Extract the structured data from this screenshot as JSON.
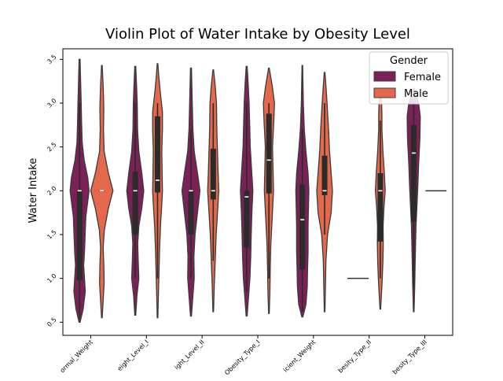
{
  "chart_data": {
    "type": "violin",
    "title": "Violin Plot of Water Intake by Obesity Level",
    "xlabel": "",
    "ylabel": "Water Intake",
    "ylim": [
      0.35,
      3.62
    ],
    "yticks": [
      "0.5",
      "1.0",
      "1.5",
      "2.0",
      "2.5",
      "3.0",
      "3.5"
    ],
    "categories": [
      "Normal_Weight",
      "Overweight_Level_I",
      "Overweight_Level_II",
      "Obesity_Type_I",
      "Insufficient_Weight",
      "Obesity_Type_II",
      "Obesity_Type_III"
    ],
    "category_tick_labels": [
      "ormal_Weight",
      "eight_Level_I",
      "ight_Level_II",
      "Obesity_Type_I",
      "icient_Weight",
      "besity_Type_II",
      "besity_Type_III"
    ],
    "legend": {
      "title": "Gender",
      "placement": "top-right"
    },
    "series": [
      {
        "name": "Female",
        "color": "#7b2157",
        "violins": [
          {
            "ymin": 0.5,
            "ymax": 3.5,
            "q1": 0.98,
            "median": 2.0,
            "q3": 2.0,
            "wlo": 0.55,
            "whi": 3.0,
            "profile": [
              [
                0.5,
                0.003
              ],
              [
                0.65,
                0.022
              ],
              [
                0.85,
                0.035
              ],
              [
                1.0,
                0.03
              ],
              [
                1.15,
                0.025
              ],
              [
                1.3,
                0.03
              ],
              [
                1.5,
                0.034
              ],
              [
                1.7,
                0.038
              ],
              [
                1.85,
                0.048
              ],
              [
                2.0,
                0.058
              ],
              [
                2.15,
                0.05
              ],
              [
                2.35,
                0.028
              ],
              [
                2.55,
                0.016
              ],
              [
                2.8,
                0.012
              ],
              [
                3.0,
                0.01
              ],
              [
                3.2,
                0.007
              ],
              [
                3.5,
                0.003
              ]
            ]
          },
          {
            "ymin": 0.58,
            "ymax": 3.42,
            "q1": 1.5,
            "median": 2.0,
            "q3": 2.22,
            "wlo": 1.0,
            "whi": 3.0,
            "profile": [
              [
                0.58,
                0.003
              ],
              [
                0.8,
                0.01
              ],
              [
                1.0,
                0.022
              ],
              [
                1.2,
                0.018
              ],
              [
                1.4,
                0.015
              ],
              [
                1.6,
                0.022
              ],
              [
                1.8,
                0.04
              ],
              [
                2.0,
                0.052
              ],
              [
                2.2,
                0.04
              ],
              [
                2.45,
                0.022
              ],
              [
                2.7,
                0.014
              ],
              [
                3.0,
                0.012
              ],
              [
                3.2,
                0.008
              ],
              [
                3.42,
                0.003
              ]
            ]
          },
          {
            "ymin": 0.57,
            "ymax": 3.4,
            "q1": 1.5,
            "median": 2.0,
            "q3": 2.0,
            "wlo": 1.0,
            "whi": 2.7,
            "profile": [
              [
                0.57,
                0.003
              ],
              [
                0.8,
                0.012
              ],
              [
                1.0,
                0.02
              ],
              [
                1.25,
                0.018
              ],
              [
                1.5,
                0.025
              ],
              [
                1.75,
                0.04
              ],
              [
                2.0,
                0.055
              ],
              [
                2.2,
                0.04
              ],
              [
                2.45,
                0.02
              ],
              [
                2.7,
                0.012
              ],
              [
                3.0,
                0.008
              ],
              [
                3.4,
                0.003
              ]
            ]
          },
          {
            "ymin": 0.57,
            "ymax": 3.42,
            "q1": 1.35,
            "median": 1.93,
            "q3": 2.0,
            "wlo": 0.85,
            "whi": 3.0,
            "profile": [
              [
                0.57,
                0.003
              ],
              [
                0.8,
                0.012
              ],
              [
                1.0,
                0.02
              ],
              [
                1.25,
                0.025
              ],
              [
                1.5,
                0.028
              ],
              [
                1.75,
                0.032
              ],
              [
                2.0,
                0.038
              ],
              [
                2.25,
                0.03
              ],
              [
                2.5,
                0.022
              ],
              [
                2.8,
                0.018
              ],
              [
                3.0,
                0.015
              ],
              [
                3.2,
                0.01
              ],
              [
                3.42,
                0.003
              ]
            ]
          },
          {
            "ymin": 0.56,
            "ymax": 3.43,
            "q1": 1.1,
            "median": 1.67,
            "q3": 2.07,
            "wlo": 0.62,
            "whi": 2.7,
            "profile": [
              [
                0.56,
                0.003
              ],
              [
                0.7,
                0.022
              ],
              [
                0.9,
                0.03
              ],
              [
                1.1,
                0.032
              ],
              [
                1.3,
                0.035
              ],
              [
                1.6,
                0.035
              ],
              [
                1.85,
                0.038
              ],
              [
                2.0,
                0.04
              ],
              [
                2.2,
                0.035
              ],
              [
                2.45,
                0.022
              ],
              [
                2.7,
                0.012
              ],
              [
                3.0,
                0.006
              ],
              [
                3.43,
                0.002
              ]
            ]
          },
          {
            "ymin": 1.0,
            "ymax": 1.0,
            "line": true
          },
          {
            "ymin": 0.62,
            "ymax": 3.17,
            "q1": 1.65,
            "median": 2.43,
            "q3": 2.75,
            "wlo": 0.9,
            "whi": 3.0,
            "profile": [
              [
                0.62,
                0.002
              ],
              [
                0.9,
                0.006
              ],
              [
                1.2,
                0.009
              ],
              [
                1.6,
                0.014
              ],
              [
                2.0,
                0.024
              ],
              [
                2.3,
                0.03
              ],
              [
                2.6,
                0.038
              ],
              [
                2.85,
                0.04
              ],
              [
                3.0,
                0.03
              ],
              [
                3.17,
                0.003
              ]
            ]
          }
        ]
      },
      {
        "name": "Male",
        "color": "#e4694c",
        "violins": [
          {
            "ymin": 0.55,
            "ymax": 3.43,
            "q1": 2.0,
            "median": 2.0,
            "q3": 2.0,
            "wlo": 2.0,
            "whi": 2.0,
            "profile": [
              [
                0.55,
                0.002
              ],
              [
                0.75,
                0.008
              ],
              [
                0.95,
                0.014
              ],
              [
                1.15,
                0.012
              ],
              [
                1.35,
                0.008
              ],
              [
                1.55,
                0.015
              ],
              [
                1.8,
                0.04
              ],
              [
                2.0,
                0.068
              ],
              [
                2.2,
                0.04
              ],
              [
                2.45,
                0.014
              ],
              [
                2.7,
                0.01
              ],
              [
                2.95,
                0.012
              ],
              [
                3.2,
                0.008
              ],
              [
                3.43,
                0.002
              ]
            ]
          },
          {
            "ymin": 0.55,
            "ymax": 3.45,
            "q1": 1.98,
            "median": 2.12,
            "q3": 2.85,
            "wlo": 1.0,
            "whi": 3.0,
            "profile": [
              [
                0.55,
                0.002
              ],
              [
                0.8,
                0.005
              ],
              [
                1.0,
                0.008
              ],
              [
                1.3,
                0.012
              ],
              [
                1.6,
                0.018
              ],
              [
                1.85,
                0.026
              ],
              [
                2.0,
                0.03
              ],
              [
                2.2,
                0.028
              ],
              [
                2.45,
                0.026
              ],
              [
                2.7,
                0.03
              ],
              [
                2.9,
                0.03
              ],
              [
                3.1,
                0.018
              ],
              [
                3.3,
                0.008
              ],
              [
                3.45,
                0.002
              ]
            ]
          },
          {
            "ymin": 0.62,
            "ymax": 3.38,
            "q1": 1.9,
            "median": 2.0,
            "q3": 2.48,
            "wlo": 1.2,
            "whi": 3.0,
            "profile": [
              [
                0.62,
                0.002
              ],
              [
                0.9,
                0.006
              ],
              [
                1.2,
                0.012
              ],
              [
                1.5,
                0.018
              ],
              [
                1.75,
                0.026
              ],
              [
                2.0,
                0.034
              ],
              [
                2.2,
                0.03
              ],
              [
                2.45,
                0.026
              ],
              [
                2.7,
                0.022
              ],
              [
                3.0,
                0.02
              ],
              [
                3.2,
                0.012
              ],
              [
                3.38,
                0.002
              ]
            ]
          },
          {
            "ymin": 0.6,
            "ymax": 3.4,
            "q1": 1.97,
            "median": 2.35,
            "q3": 2.88,
            "wlo": 1.0,
            "whi": 3.0,
            "profile": [
              [
                0.6,
                0.002
              ],
              [
                0.85,
                0.006
              ],
              [
                1.1,
                0.008
              ],
              [
                1.4,
                0.012
              ],
              [
                1.7,
                0.02
              ],
              [
                2.0,
                0.028
              ],
              [
                2.25,
                0.025
              ],
              [
                2.5,
                0.022
              ],
              [
                2.8,
                0.03
              ],
              [
                3.0,
                0.034
              ],
              [
                3.2,
                0.02
              ],
              [
                3.4,
                0.002
              ]
            ]
          },
          {
            "ymin": 0.62,
            "ymax": 3.35,
            "q1": 1.95,
            "median": 2.0,
            "q3": 2.4,
            "wlo": 1.5,
            "whi": 3.0,
            "profile": [
              [
                0.62,
                0.002
              ],
              [
                0.9,
                0.005
              ],
              [
                1.2,
                0.008
              ],
              [
                1.5,
                0.018
              ],
              [
                1.75,
                0.04
              ],
              [
                2.0,
                0.048
              ],
              [
                2.2,
                0.04
              ],
              [
                2.45,
                0.03
              ],
              [
                2.7,
                0.024
              ],
              [
                3.0,
                0.015
              ],
              [
                3.2,
                0.008
              ],
              [
                3.35,
                0.002
              ]
            ]
          },
          {
            "ymin": 0.65,
            "ymax": 3.15,
            "q1": 1.42,
            "median": 2.0,
            "q3": 2.2,
            "wlo": 1.0,
            "whi": 2.8,
            "profile": [
              [
                0.65,
                0.002
              ],
              [
                0.85,
                0.008
              ],
              [
                1.0,
                0.012
              ],
              [
                1.2,
                0.016
              ],
              [
                1.4,
                0.018
              ],
              [
                1.6,
                0.017
              ],
              [
                1.8,
                0.022
              ],
              [
                2.0,
                0.03
              ],
              [
                2.2,
                0.025
              ],
              [
                2.45,
                0.016
              ],
              [
                2.7,
                0.01
              ],
              [
                2.85,
                0.01
              ],
              [
                3.0,
                0.008
              ],
              [
                3.15,
                0.002
              ]
            ]
          },
          {
            "ymin": 2.0,
            "ymax": 2.0,
            "line": true
          }
        ]
      }
    ]
  }
}
